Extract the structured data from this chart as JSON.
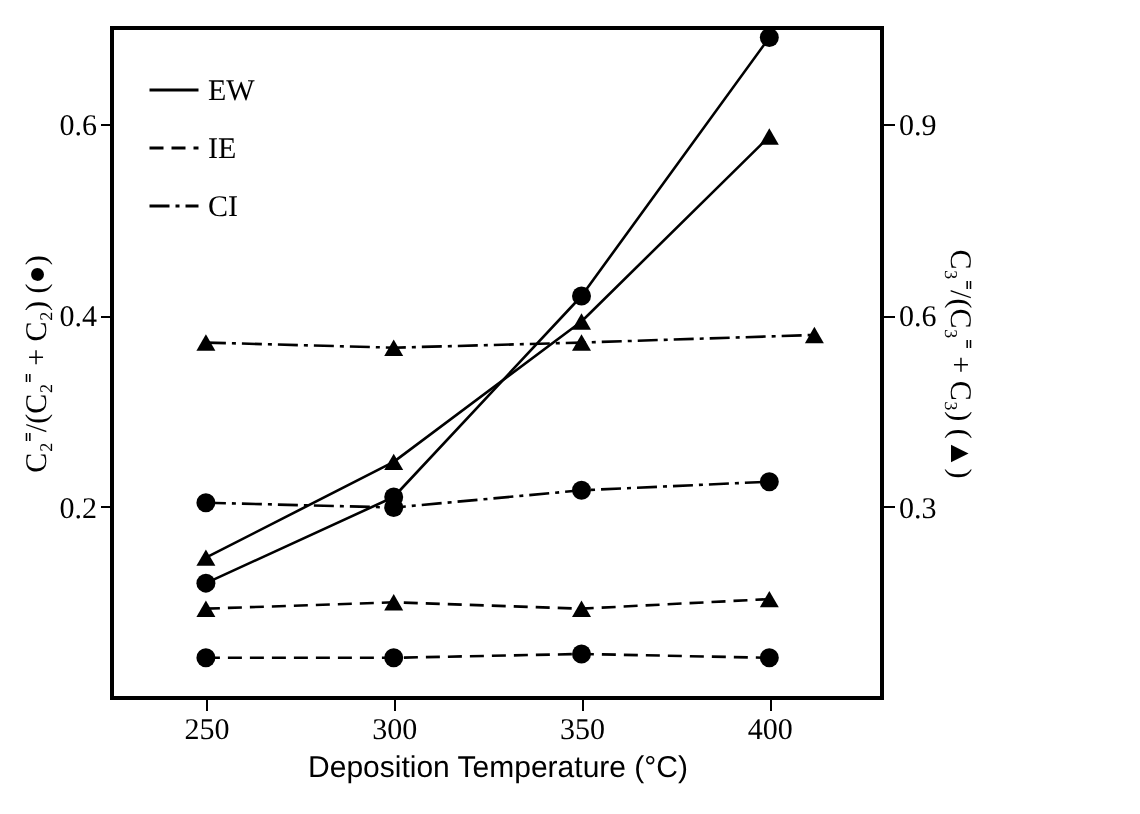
{
  "chart_data": {
    "type": "line",
    "xlabel": "Deposition Temperature (°C)",
    "ylabel": "C₂⁼/(C₂⁼ + C₂) (●)",
    "y2label": "C₃⁼/(C₃⁼ + C₃) (▲)",
    "x": [
      250,
      300,
      350,
      400
    ],
    "xlim": [
      225,
      430
    ],
    "xticks": [
      250,
      300,
      350,
      400
    ],
    "ylim": [
      0,
      0.7
    ],
    "yticks": [
      0.2,
      0.4,
      0.6
    ],
    "y2lim": [
      0,
      1.05
    ],
    "y2ticks": [
      0.3,
      0.6,
      0.9
    ],
    "grid": false,
    "legend": "top left",
    "series": [
      {
        "name": "EW",
        "color": "#000000",
        "line_style": "solid",
        "marker": "circle",
        "values": [
          0.12,
          0.21,
          0.42,
          0.69
        ]
      },
      {
        "color": "#000000",
        "line_style": "solid",
        "marker": "triangle",
        "axis": "y2",
        "values": [
          0.22,
          0.37,
          0.59,
          0.88
        ]
      },
      {
        "name": "IE",
        "color": "#000000",
        "line_style": "dashed",
        "marker": "circle",
        "values": [
          0.042,
          0.042,
          0.046,
          0.042
        ]
      },
      {
        "color": "#000000",
        "line_style": "dashed",
        "marker": "triangle",
        "axis": "y2",
        "values": [
          0.14,
          0.15,
          0.14,
          0.155
        ]
      },
      {
        "name": "CI",
        "color": "#000000",
        "line_style": "dashdot",
        "marker": "circle",
        "values": [
          0.204,
          0.199,
          0.217,
          0.226
        ]
      },
      {
        "color": "#000000",
        "line_style": "dashdot",
        "marker": "triangle",
        "axis": "y2",
        "x": [
          250,
          300,
          350,
          412
        ],
        "values": [
          0.557,
          0.549,
          0.557,
          0.569
        ]
      }
    ]
  }
}
